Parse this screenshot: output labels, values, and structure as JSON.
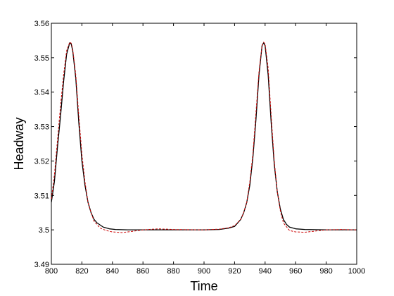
{
  "chart_data": {
    "type": "line",
    "title": "",
    "xlabel": "Time",
    "ylabel": "Headway",
    "xlim": [
      800,
      1000
    ],
    "ylim": [
      3.49,
      3.56
    ],
    "xticks": [
      800,
      820,
      840,
      860,
      880,
      900,
      920,
      940,
      960,
      980,
      1000
    ],
    "xtick_labels": [
      "800",
      "820",
      "840",
      "860",
      "880",
      "900",
      "920",
      "940",
      "960",
      "980",
      "1000"
    ],
    "yticks": [
      3.49,
      3.5,
      3.51,
      3.52,
      3.53,
      3.54,
      3.55,
      3.56
    ],
    "ytick_labels": [
      "3.49",
      "3.5",
      "3.51",
      "3.52",
      "3.53",
      "3.54",
      "3.55",
      "3.56"
    ],
    "grid": false,
    "legend": "none",
    "series": [
      {
        "style": "solid",
        "color": "#000000",
        "x": [
          800,
          802,
          804,
          806,
          808,
          810,
          812,
          813,
          814,
          816,
          818,
          820,
          822,
          824,
          826,
          828,
          830,
          834,
          838,
          842,
          850,
          860,
          880,
          900,
          910,
          916,
          920,
          924,
          926,
          928,
          930,
          932,
          934,
          936,
          938,
          939,
          940,
          942,
          944,
          946,
          948,
          950,
          952,
          954,
          956,
          960,
          966,
          980,
          1000
        ],
        "y": [
          3.508,
          3.514,
          3.524,
          3.533,
          3.543,
          3.551,
          3.5543,
          3.554,
          3.552,
          3.544,
          3.531,
          3.52,
          3.513,
          3.508,
          3.505,
          3.503,
          3.502,
          3.5008,
          3.5003,
          3.5001,
          3.5,
          3.5,
          3.5,
          3.5,
          3.5001,
          3.5005,
          3.501,
          3.503,
          3.505,
          3.508,
          3.513,
          3.521,
          3.532,
          3.545,
          3.5535,
          3.5543,
          3.5535,
          3.545,
          3.531,
          3.519,
          3.511,
          3.506,
          3.503,
          3.5016,
          3.5008,
          3.5003,
          3.5001,
          3.5,
          3.5
        ]
      },
      {
        "style": "dashed",
        "color": "#cc0000",
        "x": [
          800,
          802,
          804,
          806,
          808,
          810,
          812,
          813,
          814,
          816,
          818,
          820,
          822,
          824,
          826,
          828,
          832,
          836,
          840,
          846,
          852,
          860,
          870,
          880,
          900,
          910,
          916,
          920,
          924,
          926,
          928,
          930,
          932,
          934,
          936,
          938,
          939,
          940,
          942,
          944,
          946,
          948,
          950,
          952,
          956,
          960,
          966,
          972,
          980,
          990,
          1000
        ],
        "y": [
          3.509,
          3.516,
          3.526,
          3.536,
          3.545,
          3.552,
          3.5545,
          3.5542,
          3.5525,
          3.545,
          3.533,
          3.522,
          3.514,
          3.508,
          3.505,
          3.5025,
          3.5005,
          3.4998,
          3.4994,
          3.4992,
          3.4995,
          3.5,
          3.5003,
          3.5001,
          3.5,
          3.5002,
          3.5006,
          3.5012,
          3.503,
          3.505,
          3.508,
          3.514,
          3.522,
          3.534,
          3.546,
          3.5535,
          3.5545,
          3.554,
          3.547,
          3.533,
          3.52,
          3.511,
          3.5055,
          3.502,
          3.4998,
          3.4994,
          3.4993,
          3.4996,
          3.5,
          3.5001,
          3.5
        ]
      }
    ]
  }
}
